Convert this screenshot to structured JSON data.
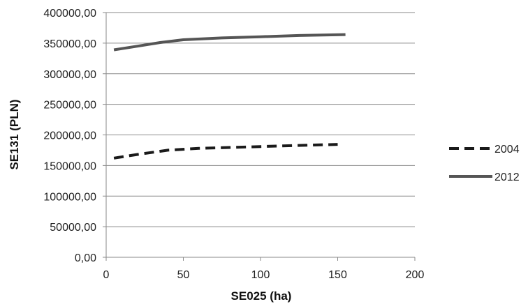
{
  "chart_data": {
    "type": "line",
    "title": "",
    "xlabel": "SE025 (ha)",
    "ylabel": "SE131 (PLN)",
    "xlim": [
      0,
      200
    ],
    "ylim": [
      0,
      400000
    ],
    "x_ticks": [
      0,
      50,
      100,
      150,
      200
    ],
    "x_tick_labels": [
      "0",
      "50",
      "100",
      "150",
      "200"
    ],
    "y_ticks": [
      0,
      50000,
      100000,
      150000,
      200000,
      250000,
      300000,
      350000,
      400000
    ],
    "y_tick_labels": [
      "0,00",
      "50000,00",
      "100000,00",
      "150000,00",
      "200000,00",
      "250000,00",
      "300000,00",
      "350000,00",
      "400000,00"
    ],
    "grid": "horizontal",
    "legend_position": "right",
    "series": [
      {
        "name": "2004",
        "color": "#1a1a1a",
        "dash": "dashed",
        "x": [
          5,
          20,
          40,
          60,
          80,
          100,
          120,
          150
        ],
        "y": [
          162000,
          168000,
          175000,
          178000,
          179500,
          181000,
          182500,
          184500
        ]
      },
      {
        "name": "2012",
        "color": "#555555",
        "dash": "solid",
        "x": [
          5,
          20,
          35,
          50,
          75,
          100,
          125,
          155
        ],
        "y": [
          339000,
          345000,
          351000,
          355500,
          358500,
          360500,
          362500,
          364000
        ]
      }
    ]
  }
}
